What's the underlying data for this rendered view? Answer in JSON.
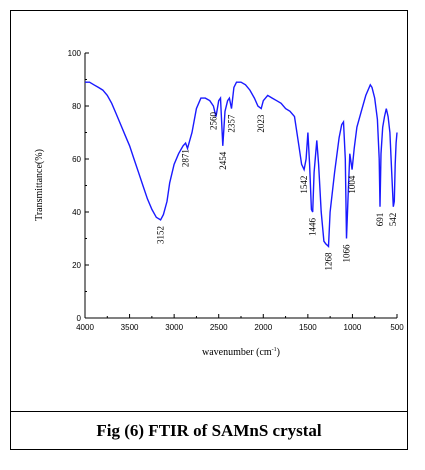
{
  "caption": "Fig (6) FTIR of SAMnS crystal",
  "chart_data": {
    "type": "line",
    "xlabel_main": "wavenumber (cm",
    "xlabel_sup": "-1",
    "xlabel_close": ")",
    "ylabel": "Transmittance(%)",
    "xlim": [
      4000,
      500
    ],
    "ylim": [
      0,
      100
    ],
    "x_ticks": [
      4000,
      3500,
      3000,
      2500,
      2000,
      1500,
      1000,
      500
    ],
    "y_ticks": [
      0,
      20,
      40,
      60,
      80,
      100
    ],
    "line_color": "#1a1aff",
    "series": [
      {
        "x": [
          4000,
          3950,
          3900,
          3850,
          3800,
          3750,
          3700,
          3650,
          3600,
          3550,
          3500,
          3450,
          3400,
          3350,
          3300,
          3250,
          3200,
          3152,
          3120,
          3080,
          3050,
          3000,
          2950,
          2900,
          2871,
          2850,
          2800,
          2750,
          2700,
          2650,
          2600,
          2560,
          2530,
          2500,
          2480,
          2454,
          2430,
          2400,
          2380,
          2357,
          2330,
          2300,
          2250,
          2200,
          2150,
          2100,
          2060,
          2023,
          2000,
          1950,
          1900,
          1850,
          1800,
          1750,
          1700,
          1650,
          1600,
          1570,
          1542,
          1520,
          1500,
          1480,
          1460,
          1446,
          1430,
          1400,
          1380,
          1350,
          1320,
          1300,
          1268,
          1250,
          1200,
          1150,
          1120,
          1100,
          1080,
          1066,
          1050,
          1030,
          1004,
          980,
          950,
          900,
          850,
          800,
          780,
          750,
          720,
          700,
          691,
          680,
          660,
          640,
          620,
          600,
          580,
          560,
          542,
          530,
          520,
          510,
          500
        ],
        "y": [
          89,
          89,
          88,
          87,
          86,
          84,
          81,
          77,
          73,
          69,
          65,
          60,
          55,
          50,
          45,
          41,
          38,
          37,
          39,
          44,
          51,
          58,
          62,
          65,
          66,
          64,
          70,
          79,
          83,
          83,
          82,
          80,
          76,
          82,
          83,
          65,
          78,
          82,
          83,
          79,
          87,
          89,
          89,
          88,
          86,
          83,
          80,
          79,
          82,
          84,
          83,
          82,
          81,
          79,
          78,
          76,
          65,
          58,
          56,
          60,
          70,
          58,
          41,
          40,
          55,
          67,
          58,
          40,
          29,
          28,
          27,
          40,
          55,
          68,
          73,
          74,
          60,
          30,
          45,
          62,
          56,
          64,
          72,
          78,
          84,
          88,
          87,
          83,
          75,
          60,
          42,
          62,
          72,
          76,
          79,
          76,
          70,
          55,
          42,
          44,
          58,
          66,
          70
        ]
      }
    ],
    "annotations": [
      {
        "label": "3152",
        "x": 3152,
        "y": 37
      },
      {
        "label": "2871",
        "x": 2871,
        "y": 66
      },
      {
        "label": "2560",
        "x": 2560,
        "y": 80
      },
      {
        "label": "2454",
        "x": 2454,
        "y": 65
      },
      {
        "label": "2357",
        "x": 2357,
        "y": 79
      },
      {
        "label": "2023",
        "x": 2023,
        "y": 79
      },
      {
        "label": "1542",
        "x": 1542,
        "y": 56
      },
      {
        "label": "1446",
        "x": 1446,
        "y": 40
      },
      {
        "label": "1268",
        "x": 1268,
        "y": 27
      },
      {
        "label": "1066",
        "x": 1066,
        "y": 30
      },
      {
        "label": "1004",
        "x": 1004,
        "y": 56
      },
      {
        "label": "691",
        "x": 691,
        "y": 42
      },
      {
        "label": "542",
        "x": 542,
        "y": 42
      }
    ]
  }
}
